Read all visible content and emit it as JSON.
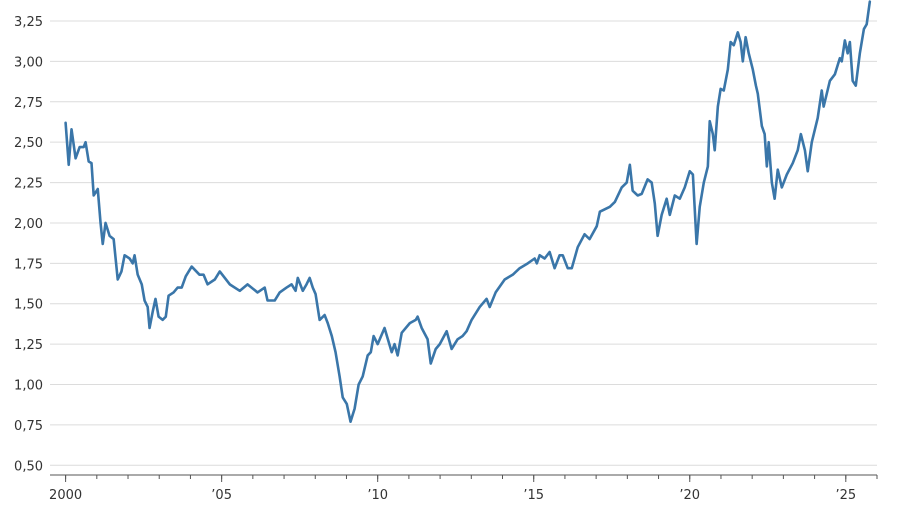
{
  "chart_data": {
    "type": "line",
    "color": "#3a76a9",
    "grid": true,
    "xlim": [
      1999.5,
      2026.0
    ],
    "xticks": [
      2000,
      {
        "value": 2005,
        "label": "’05"
      },
      {
        "value": 2010,
        "label": "’10"
      },
      {
        "value": 2015,
        "label": "’15"
      },
      {
        "value": 2020,
        "label": "’20"
      },
      {
        "value": 2025,
        "label": "’25"
      }
    ],
    "ylim": [
      0.44,
      3.38
    ],
    "yticks": [
      {
        "value": 0.5,
        "label": "0,50"
      },
      {
        "value": 0.75,
        "label": "0,75"
      },
      {
        "value": 1.0,
        "label": "1,00"
      },
      {
        "value": 1.25,
        "label": "1,25"
      },
      {
        "value": 1.5,
        "label": "1,50"
      },
      {
        "value": 1.75,
        "label": "1,75"
      },
      {
        "value": 2.0,
        "label": "2,00"
      },
      {
        "value": 2.25,
        "label": "2,25"
      },
      {
        "value": 2.5,
        "label": "2,50"
      },
      {
        "value": 2.75,
        "label": "2,75"
      },
      {
        "value": 3.0,
        "label": "3,00"
      },
      {
        "value": 3.25,
        "label": "3,25"
      }
    ],
    "x": [
      2000.0,
      2000.1,
      2000.19,
      2000.32,
      2000.45,
      2000.58,
      2000.64,
      2000.74,
      2000.83,
      2000.9,
      2001.03,
      2001.12,
      2001.19,
      2001.28,
      2001.41,
      2001.54,
      2001.67,
      2001.79,
      2001.89,
      2002.05,
      2002.15,
      2002.21,
      2002.31,
      2002.44,
      2002.53,
      2002.63,
      2002.69,
      2002.79,
      2002.88,
      2002.98,
      2003.11,
      2003.21,
      2003.3,
      2003.46,
      2003.59,
      2003.72,
      2003.85,
      2004.04,
      2004.29,
      2004.42,
      2004.55,
      2004.78,
      2004.94,
      2005.26,
      2005.58,
      2005.83,
      2006.15,
      2006.38,
      2006.47,
      2006.7,
      2006.86,
      2007.08,
      2007.24,
      2007.37,
      2007.44,
      2007.6,
      2007.72,
      2007.82,
      2007.92,
      2008.01,
      2008.14,
      2008.3,
      2008.4,
      2008.53,
      2008.65,
      2008.78,
      2008.88,
      2009.01,
      2009.13,
      2009.26,
      2009.39,
      2009.52,
      2009.68,
      2009.78,
      2009.87,
      2010.0,
      2010.22,
      2010.45,
      2010.54,
      2010.64,
      2010.77,
      2011.03,
      2011.22,
      2011.28,
      2011.41,
      2011.6,
      2011.7,
      2011.86,
      2011.99,
      2012.21,
      2012.37,
      2012.56,
      2012.72,
      2012.85,
      2013.01,
      2013.27,
      2013.49,
      2013.59,
      2013.78,
      2014.07,
      2014.33,
      2014.55,
      2014.81,
      2015.03,
      2015.1,
      2015.19,
      2015.35,
      2015.51,
      2015.67,
      2015.83,
      2015.93,
      2016.09,
      2016.22,
      2016.41,
      2016.63,
      2016.79,
      2017.02,
      2017.12,
      2017.44,
      2017.6,
      2017.82,
      2017.98,
      2018.08,
      2018.17,
      2018.33,
      2018.46,
      2018.65,
      2018.78,
      2018.88,
      2018.97,
      2019.1,
      2019.26,
      2019.36,
      2019.52,
      2019.68,
      2019.84,
      2020.0,
      2020.1,
      2020.22,
      2020.32,
      2020.45,
      2020.58,
      2020.64,
      2020.74,
      2020.8,
      2020.9,
      2020.99,
      2021.09,
      2021.22,
      2021.31,
      2021.41,
      2021.54,
      2021.63,
      2021.7,
      2021.79,
      2021.89,
      2022.02,
      2022.12,
      2022.18,
      2022.31,
      2022.4,
      2022.47,
      2022.53,
      2022.63,
      2022.72,
      2022.82,
      2022.95,
      2023.11,
      2023.3,
      2023.46,
      2023.56,
      2023.69,
      2023.78,
      2023.91,
      2024.1,
      2024.23,
      2024.29,
      2024.49,
      2024.65,
      2024.81,
      2024.87,
      2024.97,
      2025.06,
      2025.13,
      2025.22,
      2025.32,
      2025.45,
      2025.58,
      2025.67,
      2025.77
    ],
    "values": [
      2.62,
      2.36,
      2.58,
      2.4,
      2.47,
      2.47,
      2.5,
      2.38,
      2.37,
      2.17,
      2.21,
      2.0,
      1.87,
      2.0,
      1.92,
      1.9,
      1.65,
      1.7,
      1.8,
      1.78,
      1.75,
      1.8,
      1.68,
      1.62,
      1.52,
      1.48,
      1.35,
      1.45,
      1.53,
      1.42,
      1.4,
      1.42,
      1.55,
      1.57,
      1.6,
      1.6,
      1.67,
      1.73,
      1.68,
      1.68,
      1.62,
      1.65,
      1.7,
      1.62,
      1.58,
      1.62,
      1.57,
      1.6,
      1.52,
      1.52,
      1.57,
      1.6,
      1.62,
      1.58,
      1.66,
      1.58,
      1.62,
      1.66,
      1.6,
      1.56,
      1.4,
      1.43,
      1.38,
      1.3,
      1.2,
      1.05,
      0.92,
      0.88,
      0.77,
      0.85,
      1.0,
      1.05,
      1.18,
      1.2,
      1.3,
      1.25,
      1.35,
      1.2,
      1.25,
      1.18,
      1.32,
      1.38,
      1.4,
      1.42,
      1.35,
      1.28,
      1.13,
      1.22,
      1.25,
      1.33,
      1.22,
      1.28,
      1.3,
      1.33,
      1.4,
      1.48,
      1.53,
      1.48,
      1.57,
      1.65,
      1.68,
      1.72,
      1.75,
      1.78,
      1.75,
      1.8,
      1.78,
      1.82,
      1.72,
      1.8,
      1.8,
      1.72,
      1.72,
      1.85,
      1.93,
      1.9,
      1.98,
      2.07,
      2.1,
      2.13,
      2.22,
      2.25,
      2.36,
      2.2,
      2.17,
      2.18,
      2.27,
      2.25,
      2.12,
      1.92,
      2.05,
      2.15,
      2.05,
      2.17,
      2.15,
      2.22,
      2.32,
      2.3,
      1.87,
      2.1,
      2.25,
      2.35,
      2.63,
      2.55,
      2.45,
      2.72,
      2.83,
      2.82,
      2.95,
      3.12,
      3.1,
      3.18,
      3.12,
      3.0,
      3.15,
      3.05,
      2.95,
      2.85,
      2.8,
      2.6,
      2.55,
      2.35,
      2.5,
      2.25,
      2.15,
      2.33,
      2.22,
      2.3,
      2.37,
      2.45,
      2.55,
      2.45,
      2.32,
      2.5,
      2.65,
      2.82,
      2.72,
      2.88,
      2.92,
      3.02,
      3.0,
      3.13,
      3.05,
      3.12,
      2.88,
      2.85,
      3.05,
      3.2,
      3.23,
      3.37
    ]
  }
}
